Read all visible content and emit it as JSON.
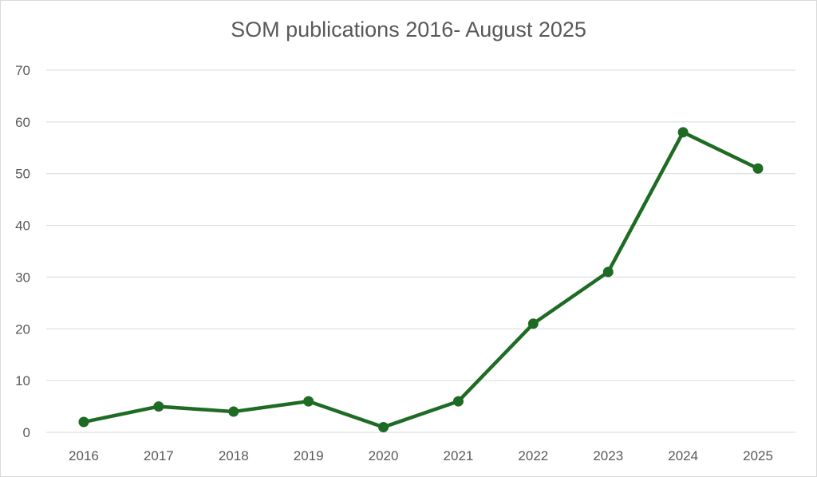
{
  "chart_data": {
    "type": "line",
    "title": "SOM publications 2016- August 2025",
    "xlabel": "",
    "ylabel": "",
    "categories": [
      "2016",
      "2017",
      "2018",
      "2019",
      "2020",
      "2021",
      "2022",
      "2023",
      "2024",
      "2025"
    ],
    "series": [
      {
        "name": "SOM publications",
        "values": [
          2,
          5,
          4,
          6,
          1,
          6,
          21,
          31,
          58,
          51
        ]
      }
    ],
    "ylim": [
      0,
      70
    ],
    "yticks": [
      0,
      10,
      20,
      30,
      40,
      50,
      60,
      70
    ],
    "grid": true,
    "legend": "none",
    "colors": {
      "line": "#1e6b23",
      "grid": "#d9d9d9",
      "text": "#595959"
    }
  }
}
